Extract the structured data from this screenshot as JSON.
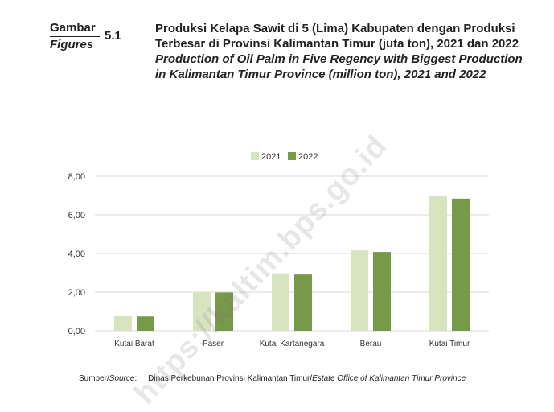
{
  "figure": {
    "label_id": "Gambar",
    "label_en": "Figures",
    "number": "5.1",
    "title_id": "Produksi Kelapa Sawit di 5 (Lima) Kabupaten dengan Produksi Terbesar di Provinsi Kalimantan Timur (juta ton), 2021 dan 2022",
    "title_en": "Production of Oil Palm in Five Regency with Biggest Production in Kalimantan Timur Province (million ton), 2021 and 2022"
  },
  "source": {
    "label_id": "Sumber/",
    "label_en": "Source",
    "colon": ":",
    "text_id": "Dinas Perkebunan Provinsi Kalimantan Timur/",
    "text_en": "Estate Office of Kalimantan Timur Province"
  },
  "watermark": "https://kaltim.bps.go.id",
  "colors": {
    "2021": "#d6e4bf",
    "2022": "#76994a",
    "grid": "#d9d9d9"
  },
  "chart_data": {
    "type": "bar",
    "categories": [
      "Kutai Barat",
      "Paser",
      "Kutai Kartanegara",
      "Berau",
      "Kutai Timur"
    ],
    "series": [
      {
        "name": "2021",
        "values": [
          0.75,
          2.02,
          2.97,
          4.16,
          6.97
        ]
      },
      {
        "name": "2022",
        "values": [
          0.74,
          1.98,
          2.91,
          4.08,
          6.84
        ]
      }
    ],
    "yticks": [
      "0,00",
      "2,00",
      "4,00",
      "6,00",
      "8,00"
    ],
    "ylim": [
      0,
      8
    ],
    "grid": true,
    "legend": "top-center"
  }
}
